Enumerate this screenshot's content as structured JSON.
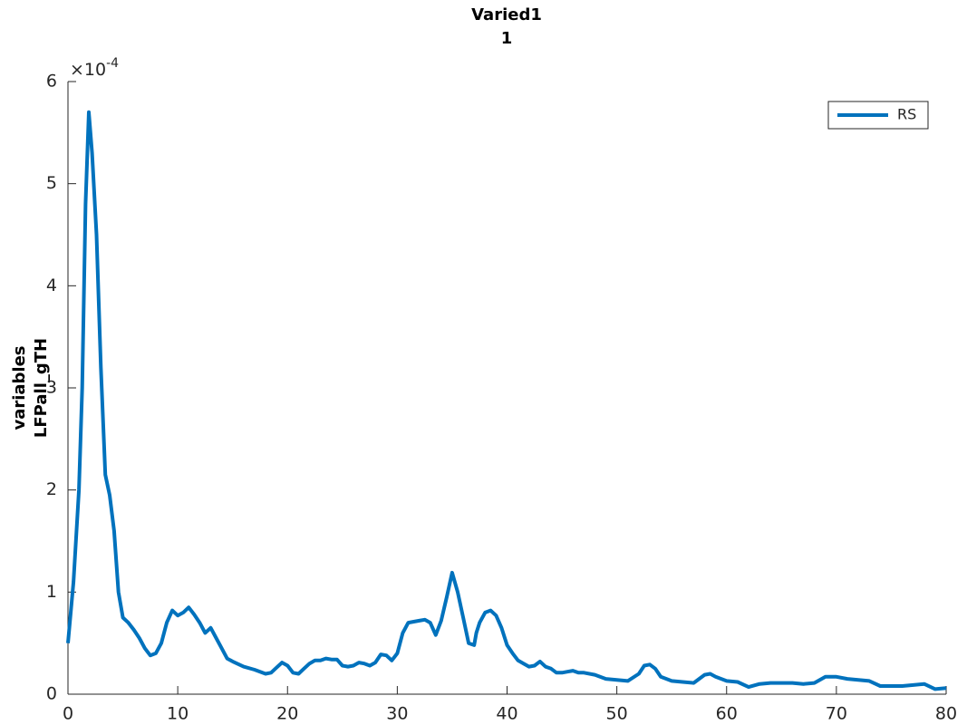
{
  "chart_data": {
    "type": "line",
    "title": [
      "Varied1",
      "1"
    ],
    "ylabel": [
      "variables",
      "LFPall_gTH"
    ],
    "yexponent_label": "×10",
    "yexponent": "-4",
    "legend": "northeast",
    "xlim": [
      0,
      80
    ],
    "xticks": [
      0,
      10,
      20,
      30,
      40,
      50,
      60,
      70,
      80
    ],
    "ylim": [
      0,
      6
    ],
    "yticks": [
      0,
      1,
      2,
      3,
      4,
      5,
      6
    ],
    "x": [
      0,
      0.5,
      1,
      1.3,
      1.6,
      1.9,
      2.2,
      2.6,
      3,
      3.4,
      3.8,
      4.2,
      4.6,
      5,
      5.5,
      6,
      6.5,
      7,
      7.5,
      8,
      8.5,
      9,
      9.5,
      10,
      10.5,
      11,
      11.5,
      12,
      12.5,
      13,
      13.5,
      14,
      14.5,
      15,
      16,
      17,
      18,
      18.5,
      19,
      19.5,
      20,
      20.5,
      21,
      21.5,
      22,
      22.5,
      23,
      23.5,
      24,
      24.5,
      25,
      25.5,
      26,
      26.5,
      27,
      27.5,
      28,
      28.5,
      29,
      29.5,
      30,
      30.5,
      31,
      31.5,
      32,
      32.5,
      33,
      33.5,
      34,
      34.5,
      35,
      35.5,
      36,
      36.5,
      37,
      37.2,
      37.5,
      38,
      38.5,
      39,
      39.5,
      40,
      40.5,
      41,
      41.5,
      42,
      42.5,
      43,
      43.5,
      44,
      44.5,
      45,
      45.5,
      46,
      46.5,
      47,
      48,
      49,
      50,
      51,
      52,
      52.5,
      53,
      53.5,
      54,
      55,
      56,
      57,
      58,
      58.5,
      59,
      60,
      61,
      62,
      63,
      64,
      65,
      66,
      67,
      68,
      69,
      70,
      71,
      72,
      73,
      74,
      75,
      76,
      77,
      78,
      79,
      80
    ],
    "series": [
      {
        "name": "RS",
        "color": "#0072bd",
        "values": [
          0.5,
          1.1,
          2.0,
          3.0,
          4.8,
          5.7,
          5.3,
          4.5,
          3.2,
          2.15,
          1.95,
          1.6,
          1.0,
          0.75,
          0.7,
          0.63,
          0.55,
          0.45,
          0.38,
          0.4,
          0.5,
          0.7,
          0.82,
          0.77,
          0.8,
          0.85,
          0.78,
          0.7,
          0.6,
          0.65,
          0.55,
          0.45,
          0.35,
          0.32,
          0.27,
          0.24,
          0.2,
          0.21,
          0.26,
          0.31,
          0.28,
          0.21,
          0.2,
          0.25,
          0.3,
          0.33,
          0.33,
          0.35,
          0.34,
          0.34,
          0.28,
          0.27,
          0.28,
          0.31,
          0.3,
          0.28,
          0.31,
          0.39,
          0.38,
          0.33,
          0.4,
          0.6,
          0.7,
          0.71,
          0.72,
          0.73,
          0.7,
          0.58,
          0.72,
          0.95,
          1.19,
          1.0,
          0.75,
          0.5,
          0.48,
          0.6,
          0.7,
          0.8,
          0.82,
          0.77,
          0.65,
          0.48,
          0.4,
          0.33,
          0.3,
          0.27,
          0.28,
          0.32,
          0.27,
          0.25,
          0.21,
          0.21,
          0.22,
          0.23,
          0.21,
          0.21,
          0.19,
          0.15,
          0.14,
          0.13,
          0.2,
          0.28,
          0.29,
          0.25,
          0.17,
          0.13,
          0.12,
          0.11,
          0.19,
          0.2,
          0.17,
          0.13,
          0.12,
          0.07,
          0.1,
          0.11,
          0.11,
          0.11,
          0.1,
          0.11,
          0.17,
          0.17,
          0.15,
          0.14,
          0.13,
          0.08,
          0.08,
          0.08,
          0.09,
          0.1,
          0.05,
          0.06
        ]
      }
    ]
  }
}
